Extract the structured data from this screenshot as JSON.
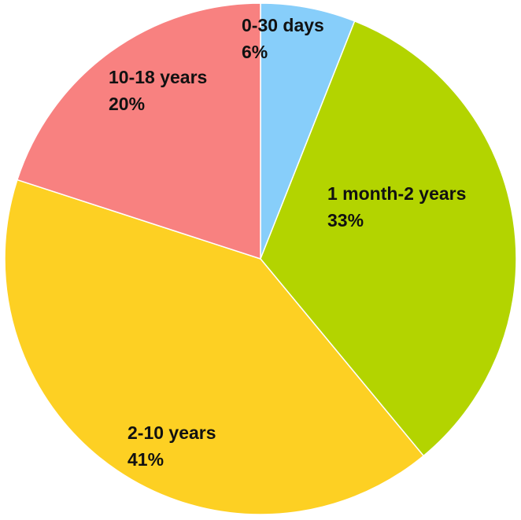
{
  "chart_data": {
    "type": "pie",
    "start_angle_deg": 0,
    "direction": "clockwise",
    "slices": [
      {
        "label": "0-30 days",
        "value": 6,
        "value_label": "6%",
        "color": "#87CEFA"
      },
      {
        "label": "1 month-2 years",
        "value": 33,
        "value_label": "33%",
        "color": "#B3D400"
      },
      {
        "label": "2-10 years",
        "value": 41,
        "value_label": "41%",
        "color": "#FDD023"
      },
      {
        "label": "10-18 years",
        "value": 20,
        "value_label": "20%",
        "color": "#F88180"
      }
    ]
  }
}
